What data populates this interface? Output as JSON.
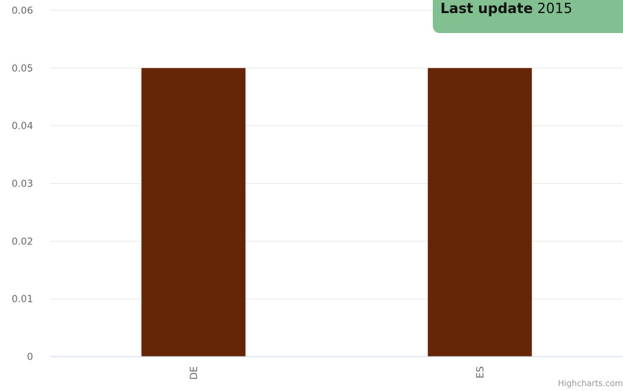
{
  "update": {
    "label": "Last update",
    "year": "2015"
  },
  "credits": "Highcharts.com",
  "colors": {
    "bar": "#662506",
    "grid": "#e6e6e6",
    "axis": "#ccd6eb",
    "update_bg": "#82c091"
  },
  "chart_data": {
    "type": "bar",
    "categories": [
      "DE",
      "ES"
    ],
    "values": [
      0.05,
      0.05
    ],
    "ylim": [
      0,
      0.06
    ],
    "yticks": [
      "0",
      "0.01",
      "0.02",
      "0.03",
      "0.04",
      "0.05",
      "0.06"
    ],
    "grid": true,
    "xlabel": "",
    "ylabel": ""
  }
}
